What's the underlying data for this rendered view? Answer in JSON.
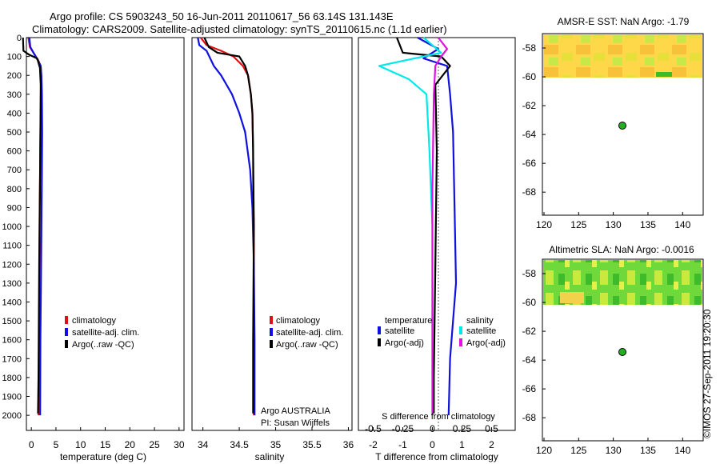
{
  "header": {
    "line1": "Argo profile: CS 5903243_50 16-Jun-2011 20110617_56 63.14S 131.143E",
    "line2": "Climatology: CARS2009. Satellite-adjusted climatology: synTS_20110615.nc (1.1d earlier)"
  },
  "watermark": "©IMOS 27-Sep-2011 19:20:30",
  "colors": {
    "climatology": "#e01010",
    "satellite": "#1010e0",
    "argo": "#000000",
    "sal_satellite": "#00e8e8",
    "sal_argo": "#e010e0",
    "float_marker": "#22b022"
  },
  "depth_ticks": [
    "0",
    "100",
    "200",
    "300",
    "400",
    "500",
    "600",
    "700",
    "800",
    "900",
    "1000",
    "1100",
    "1200",
    "1300",
    "1400",
    "1500",
    "1600",
    "1700",
    "1800",
    "1900",
    "2000"
  ],
  "panels": {
    "temperature": {
      "xlabel": "temperature (deg C)",
      "xticks": [
        "0",
        "5",
        "10",
        "15",
        "20",
        "25",
        "30"
      ],
      "legend": [
        "climatology",
        "satellite-adj. clim.",
        "Argo(..raw -QC)"
      ]
    },
    "salinity": {
      "xlabel": "salinity",
      "xticks": [
        "34",
        "34.5",
        "35",
        "35.5",
        "36"
      ],
      "legend": [
        "climatology",
        "satellite-adj. clim.",
        "Argo(..raw -QC)"
      ],
      "note1": "Argo AUSTRALIA",
      "note2": "PI: Susan Wijffels"
    },
    "difference": {
      "xlabel": "T difference from climatology",
      "top_label": "S difference from climatology",
      "s_ticks": [
        "-0.5",
        "-0.25",
        "0",
        "0.25",
        "0.5"
      ],
      "t_ticks": [
        "-2",
        "-1",
        "0",
        "1",
        "2"
      ],
      "legend_t_head": "temperature",
      "legend_s_head": "salinity",
      "legend_t": [
        "satellite",
        "Argo(-adj)"
      ],
      "legend_s": [
        "satellite",
        "Argo(-adj)"
      ]
    }
  },
  "maps": [
    {
      "title": "AMSR-E SST: NaN Argo: -1.79",
      "yticks": [
        "-58",
        "-60",
        "-62",
        "-64",
        "-66",
        "-68"
      ],
      "xticks": [
        "120",
        "125",
        "130",
        "135",
        "140"
      ]
    },
    {
      "title": "Altimetric SLA: NaN Argo: -0.0016",
      "yticks": [
        "-58",
        "-60",
        "-62",
        "-64",
        "-66",
        "-68"
      ],
      "xticks": [
        "120",
        "125",
        "130",
        "135",
        "140"
      ]
    }
  ],
  "chart_data": [
    {
      "type": "line",
      "xlabel": "temperature (deg C)",
      "ylabel": "",
      "xlim": [
        -1,
        31
      ],
      "ylim": [
        2080,
        0
      ],
      "series": [
        {
          "name": "climatology",
          "x": [
            -0.6,
            -0.3,
            1.4,
            1.9,
            2.0,
            1.95,
            1.85,
            1.8,
            1.7,
            1.65,
            1.6,
            1.55,
            1.45
          ],
          "y": [
            0,
            50,
            120,
            150,
            200,
            300,
            500,
            700,
            900,
            1200,
            1500,
            1800,
            2000
          ]
        },
        {
          "name": "satellite-adj. clim.",
          "x": [
            -0.4,
            -0.2,
            1.3,
            1.9,
            2.05,
            2.15,
            2.2,
            2.15,
            2.05,
            1.95,
            1.85,
            1.8
          ],
          "y": [
            0,
            50,
            120,
            150,
            200,
            300,
            500,
            700,
            1000,
            1300,
            1600,
            2000
          ]
        },
        {
          "name": "Argo(..raw -QC)",
          "x": [
            -1.7,
            -1.6,
            -0.5,
            1.2,
            1.75,
            1.9,
            1.85,
            1.75,
            1.6,
            1.5,
            1.45,
            1.35
          ],
          "y": [
            0,
            70,
            90,
            110,
            160,
            250,
            500,
            800,
            1200,
            1600,
            1800,
            1990
          ]
        }
      ]
    },
    {
      "type": "line",
      "xlabel": "salinity",
      "ylabel": "",
      "xlim": [
        33.85,
        36.05
      ],
      "ylim": [
        2080,
        0
      ],
      "series": [
        {
          "name": "climatology",
          "x": [
            33.97,
            34.05,
            34.25,
            34.42,
            34.55,
            34.62,
            34.66,
            34.68,
            34.69,
            34.69,
            34.7,
            34.7
          ],
          "y": [
            0,
            40,
            70,
            100,
            150,
            200,
            300,
            400,
            600,
            800,
            1000,
            2000
          ]
        },
        {
          "name": "satellite-adj. clim.",
          "x": [
            33.93,
            33.95,
            34.05,
            34.15,
            34.25,
            34.4,
            34.5,
            34.58,
            34.65,
            34.68,
            34.7,
            34.71,
            34.71
          ],
          "y": [
            0,
            40,
            70,
            150,
            200,
            300,
            400,
            500,
            700,
            900,
            1200,
            1600,
            2000
          ]
        },
        {
          "name": "Argo(..raw -QC)",
          "x": [
            34.02,
            34.08,
            34.2,
            34.5,
            34.58,
            34.62,
            34.66,
            34.68,
            34.69,
            34.7,
            34.69,
            34.69
          ],
          "y": [
            0,
            50,
            80,
            100,
            150,
            200,
            300,
            400,
            600,
            1000,
            1600,
            1990
          ]
        }
      ]
    },
    {
      "type": "line",
      "xlabel": "T difference from climatology",
      "ylabel": "",
      "xlim": [
        -2.5,
        2.8
      ],
      "ylim": [
        2080,
        0
      ],
      "series": [
        {
          "name": "temperature satellite",
          "x": [
            -0.5,
            0.2,
            -0.3,
            0.5,
            0.6,
            0.7,
            0.75,
            0.8,
            0.6,
            0.55
          ],
          "y": [
            0,
            60,
            110,
            150,
            300,
            500,
            900,
            1300,
            1700,
            2000
          ]
        },
        {
          "name": "temperature Argo(-adj)",
          "x": [
            -1.2,
            -1.0,
            0.3,
            0.6,
            0.1,
            0.15,
            0.1,
            0.05,
            0.05
          ],
          "y": [
            0,
            80,
            100,
            150,
            250,
            600,
            1200,
            1800,
            1990
          ]
        },
        {
          "name": "salinity satellite",
          "x": [
            -0.3,
            0.3,
            -1.8,
            -0.8,
            -0.2,
            -0.1,
            0.0,
            0.0,
            0.0
          ],
          "y": [
            0,
            80,
            150,
            220,
            300,
            600,
            1000,
            1600,
            2000
          ]
        },
        {
          "name": "salinity Argo(-adj)",
          "x": [
            0.2,
            0.5,
            0.3,
            0.1,
            0.05,
            0.0,
            0.0,
            0.0
          ],
          "y": [
            0,
            60,
            100,
            150,
            300,
            800,
            1500,
            1990
          ]
        }
      ]
    }
  ],
  "map_markers": [
    {
      "lon": 131.143,
      "lat": -63.14
    }
  ]
}
